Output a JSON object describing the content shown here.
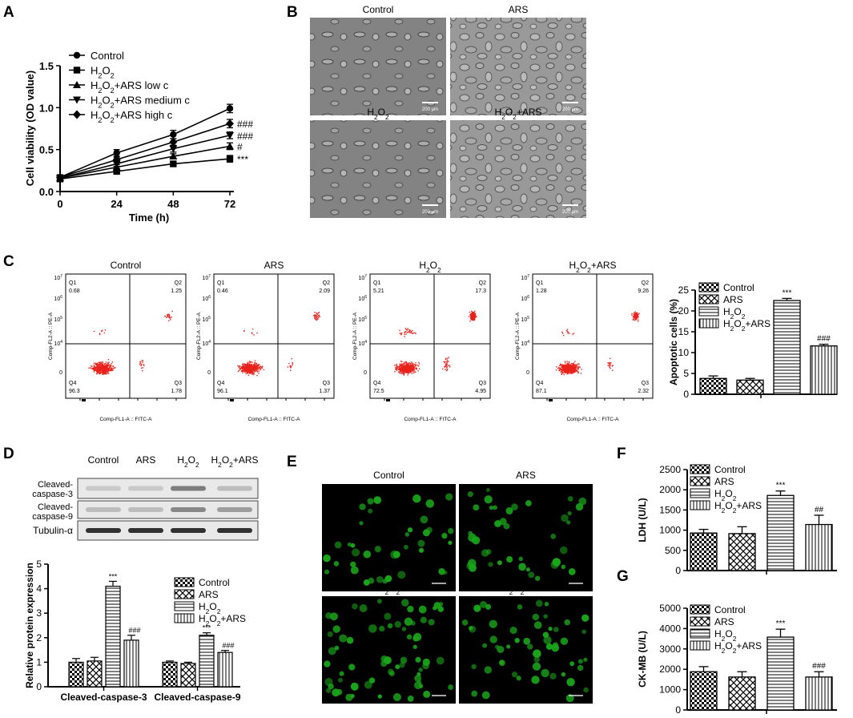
{
  "figure": {
    "panel_letters": [
      "A",
      "B",
      "C",
      "D",
      "E",
      "F",
      "G"
    ],
    "colors": {
      "ink": "#000000",
      "scatter": "#e8231c",
      "fluor": "#1aa51a",
      "micro_bg": "#9a9a9a",
      "blot_bg": "#e9e9e9"
    },
    "scale_bar": "200 μm"
  },
  "chart_data": [
    {
      "panel": "A",
      "type": "line",
      "x": [
        0,
        24,
        48,
        72
      ],
      "xlabel": "Time (h)",
      "ylabel": "Cell viability (OD value)",
      "xticks": [
        "0",
        "24",
        "48",
        "72"
      ],
      "yticks": [
        "0.0",
        "0.5",
        "1.0",
        "1.5"
      ],
      "xlim": [
        0,
        72
      ],
      "ylim": [
        0,
        1.5
      ],
      "series": [
        {
          "name": "Control",
          "marker": "circle",
          "values": [
            0.17,
            0.46,
            0.68,
            0.99
          ],
          "errors": [
            0.03,
            0.04,
            0.05,
            0.05
          ],
          "annotation": ""
        },
        {
          "name": "H2O2",
          "marker": "square",
          "values": [
            0.15,
            0.24,
            0.33,
            0.39
          ],
          "errors": [
            0.02,
            0.02,
            0.02,
            0.04
          ],
          "annotation": "***"
        },
        {
          "name": "H2O2+ARS low c",
          "marker": "triangle",
          "values": [
            0.16,
            0.29,
            0.42,
            0.54
          ],
          "errors": [
            0.02,
            0.03,
            0.03,
            0.04
          ],
          "annotation": "#"
        },
        {
          "name": "H2O2+ARS medium c",
          "marker": "triangle-down",
          "values": [
            0.16,
            0.33,
            0.51,
            0.67
          ],
          "errors": [
            0.02,
            0.03,
            0.04,
            0.04
          ],
          "annotation": "###"
        },
        {
          "name": "H2O2+ARS high c",
          "marker": "diamond",
          "values": [
            0.17,
            0.38,
            0.59,
            0.81
          ],
          "errors": [
            0.02,
            0.03,
            0.04,
            0.05
          ],
          "annotation": "###"
        }
      ],
      "legend_labels": [
        {
          "text": "Control",
          "sub": ""
        },
        {
          "pre": "H",
          "sub": "2",
          "mid": "O",
          "sub2": "2",
          "post": ""
        },
        {
          "pre": "H",
          "sub": "2",
          "mid": "O",
          "sub2": "2",
          "post": "+ARS low c"
        },
        {
          "pre": "H",
          "sub": "2",
          "mid": "O",
          "sub2": "2",
          "post": "+ARS medium c"
        },
        {
          "pre": "H",
          "sub": "2",
          "mid": "O",
          "sub2": "2",
          "post": "+ARS high c"
        }
      ]
    },
    {
      "panel": "B",
      "type": "image-grid",
      "titles": [
        "Control",
        "ARS",
        "H2O2",
        "H2O2+ARS"
      ]
    },
    {
      "panel": "C",
      "type": "scatter",
      "xlabel": "Comp-FL1-A :: FITC-A",
      "ylabel": "Comp-FL2-A :: PE-A",
      "ytick_labels": [
        "10",
        "10",
        "10",
        "10",
        "0"
      ],
      "ytick_exps": [
        "7",
        "6",
        "5",
        "4",
        ""
      ],
      "plots": [
        {
          "title": "Control",
          "Q1": "0.68",
          "Q2": "1.25",
          "Q3": "1.78",
          "Q4": "96.3"
        },
        {
          "title": "ARS",
          "Q1": "0.46",
          "Q2": "2.09",
          "Q3": "1.37",
          "Q4": "96.1"
        },
        {
          "title": "H2O2",
          "Q1": "5.21",
          "Q2": "17.3",
          "Q3": "4.95",
          "Q4": "72.5"
        },
        {
          "title": "H2O2+ARS",
          "Q1": "1.28",
          "Q2": "9.26",
          "Q3": "2.32",
          "Q4": "87.1"
        }
      ]
    },
    {
      "panel": "C",
      "type": "bar",
      "categories": [
        "Control",
        "ARS",
        "H2O2",
        "H2O2+ARS"
      ],
      "values": [
        3.8,
        3.4,
        22.5,
        11.6
      ],
      "errors": [
        0.6,
        0.4,
        0.5,
        0.4
      ],
      "annotations": [
        "",
        "",
        "***",
        "###"
      ],
      "ylabel": "Apoptotic cells (%)",
      "yticks": [
        "0",
        "5",
        "10",
        "15",
        "20",
        "25"
      ],
      "ylim": [
        0,
        25
      ]
    },
    {
      "panel": "D",
      "type": "blot",
      "lanes": [
        "Control",
        "ARS",
        "H2O2",
        "H2O2+ARS"
      ],
      "rows": [
        "Cleaved-caspase-3",
        "Cleaved-caspase-9",
        "Tubulin-α"
      ]
    },
    {
      "panel": "D",
      "type": "bar",
      "categories": [
        "Cleaved-caspase-3",
        "Cleaved-caspase-9"
      ],
      "series": [
        {
          "name": "Control",
          "values": [
            1.0,
            1.0
          ],
          "errors": [
            0.15,
            0.05
          ],
          "annotations": [
            "",
            ""
          ]
        },
        {
          "name": "ARS",
          "values": [
            1.05,
            0.95
          ],
          "errors": [
            0.15,
            0.05
          ],
          "annotations": [
            "",
            ""
          ]
        },
        {
          "name": "H2O2",
          "values": [
            4.1,
            2.1
          ],
          "errors": [
            0.2,
            0.1
          ],
          "annotations": [
            "***",
            "***"
          ]
        },
        {
          "name": "H2O2+ARS",
          "values": [
            1.9,
            1.4
          ],
          "errors": [
            0.2,
            0.08
          ],
          "annotations": [
            "###",
            "###"
          ]
        }
      ],
      "ylabel": "Relative protein expression",
      "yticks": [
        "0",
        "1",
        "2",
        "3",
        "4",
        "5"
      ],
      "ylim": [
        0,
        5
      ]
    },
    {
      "panel": "E",
      "type": "image-grid",
      "titles": [
        "Control",
        "ARS",
        "H2O2",
        "H2O2+ARS"
      ]
    },
    {
      "panel": "F",
      "type": "bar",
      "categories": [
        "Control",
        "ARS",
        "H2O2",
        "H2O2+ARS"
      ],
      "values": [
        930,
        915,
        1860,
        1140
      ],
      "errors": [
        90,
        170,
        110,
        230
      ],
      "annotations": [
        "",
        "",
        "***",
        "##"
      ],
      "ylabel": "LDH (U/L)",
      "yticks": [
        "0",
        "500",
        "1000",
        "1500",
        "2000",
        "2500"
      ],
      "ylim": [
        0,
        2500
      ]
    },
    {
      "panel": "G",
      "type": "bar",
      "categories": [
        "Control",
        "ARS",
        "H2O2",
        "H2O2+ARS"
      ],
      "values": [
        1880,
        1620,
        3580,
        1620
      ],
      "errors": [
        250,
        260,
        390,
        260
      ],
      "annotations": [
        "",
        "",
        "***",
        "###"
      ],
      "ylabel": "CK-MB (U/L)",
      "yticks": [
        "0",
        "1000",
        "2000",
        "3000",
        "4000",
        "5000"
      ],
      "ylim": [
        0,
        5000
      ]
    }
  ]
}
